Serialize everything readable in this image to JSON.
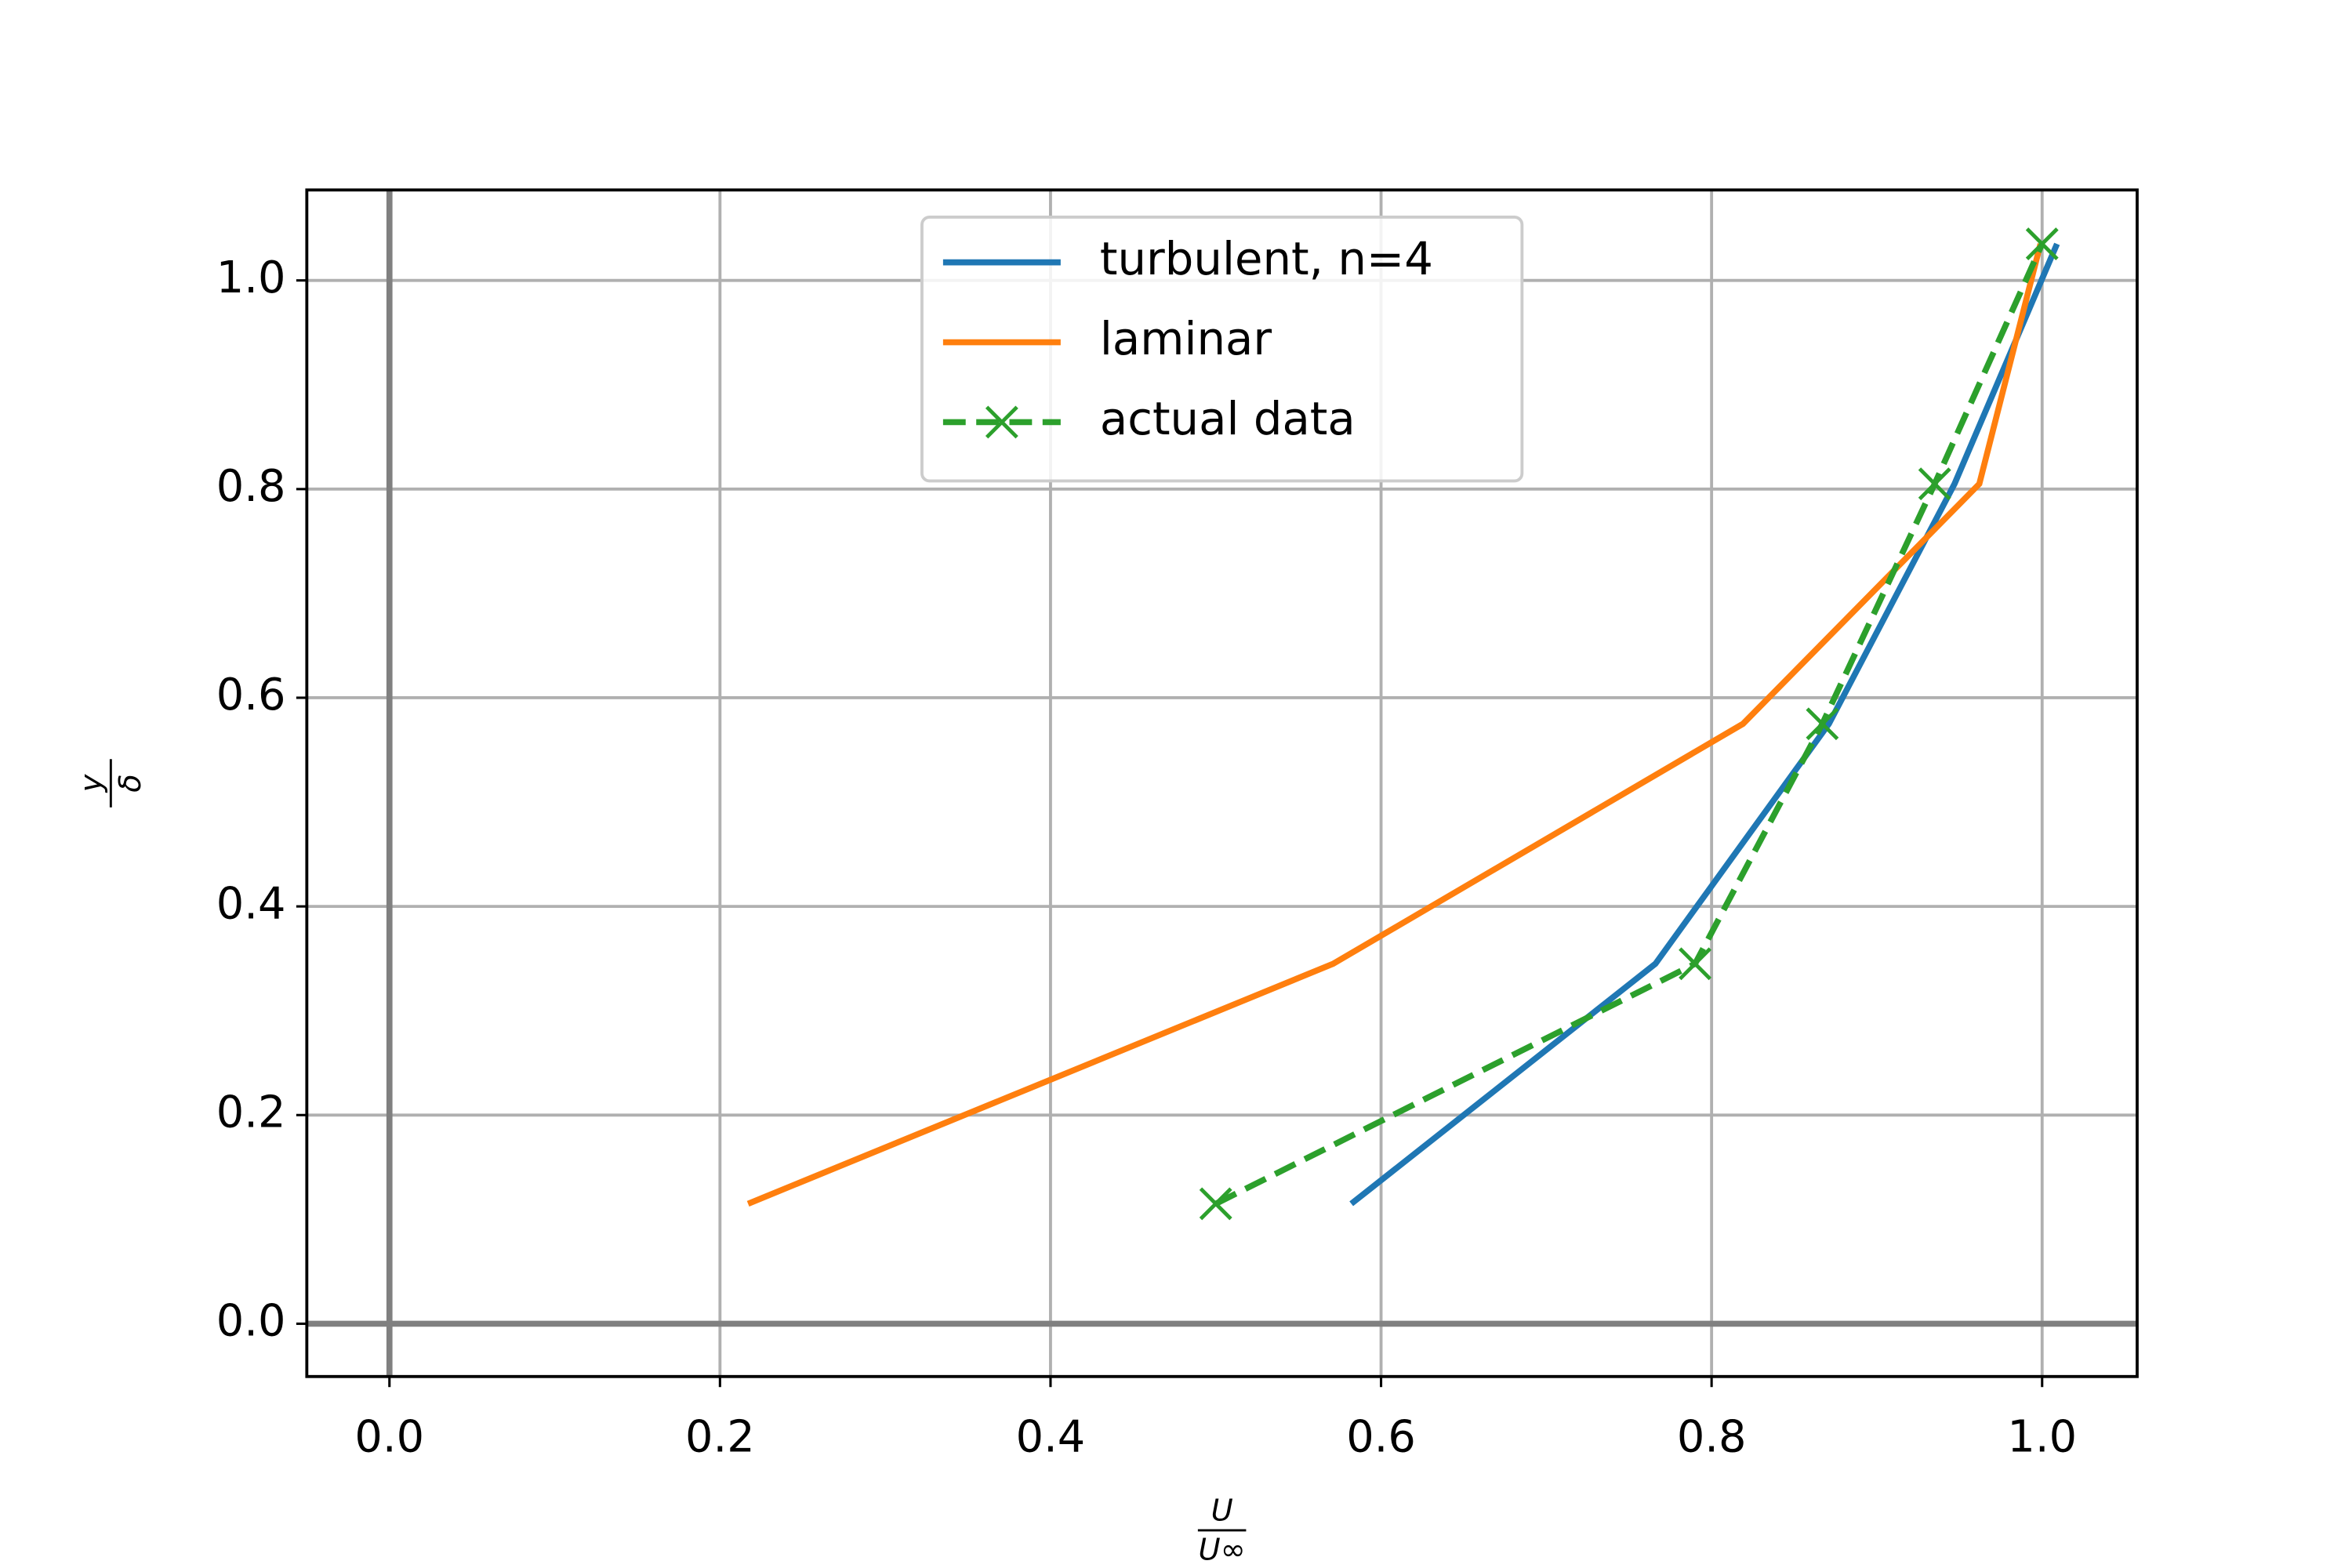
{
  "chart_data": {
    "type": "line",
    "xlabel": {
      "numerator": "U",
      "denominator": "U∞"
    },
    "ylabel": {
      "numerator": "y",
      "denominator": "δ"
    },
    "xlim": [
      -0.05,
      1.0575
    ],
    "ylim": [
      -0.0506,
      1.0867
    ],
    "xticks": [
      {
        "value": 0,
        "label": "0.0"
      },
      0.2,
      0.4,
      0.6,
      0.8,
      {
        "value": 1,
        "label": "1.0"
      }
    ],
    "yticks": [
      {
        "value": 0,
        "label": "0.0"
      },
      0.2,
      0.4,
      0.6,
      0.8,
      {
        "value": 1,
        "label": "1.0"
      }
    ],
    "grid": true,
    "reference_lines": {
      "x": 0,
      "y": 0
    },
    "legend": "upper center",
    "series": [
      {
        "name": "turbulent, n=4",
        "color": "#1f77b4",
        "dash": false,
        "marker": null,
        "x": [
          0.582,
          0.766,
          0.871,
          0.947,
          1.009
        ],
        "values": [
          0.115,
          0.345,
          0.575,
          0.805,
          1.035
        ]
      },
      {
        "name": "laminar",
        "color": "#ff7f0e",
        "dash": false,
        "marker": null,
        "x": [
          0.217,
          0.571,
          0.819,
          0.962,
          0.999
        ],
        "values": [
          0.115,
          0.345,
          0.575,
          0.805,
          1.035
        ]
      },
      {
        "name": "actual data",
        "color": "#2ca02c",
        "dash": true,
        "marker": "x",
        "x": [
          0.5,
          0.79,
          0.867,
          0.935,
          1.0
        ],
        "values": [
          0.115,
          0.345,
          0.575,
          0.805,
          1.035
        ]
      }
    ]
  }
}
